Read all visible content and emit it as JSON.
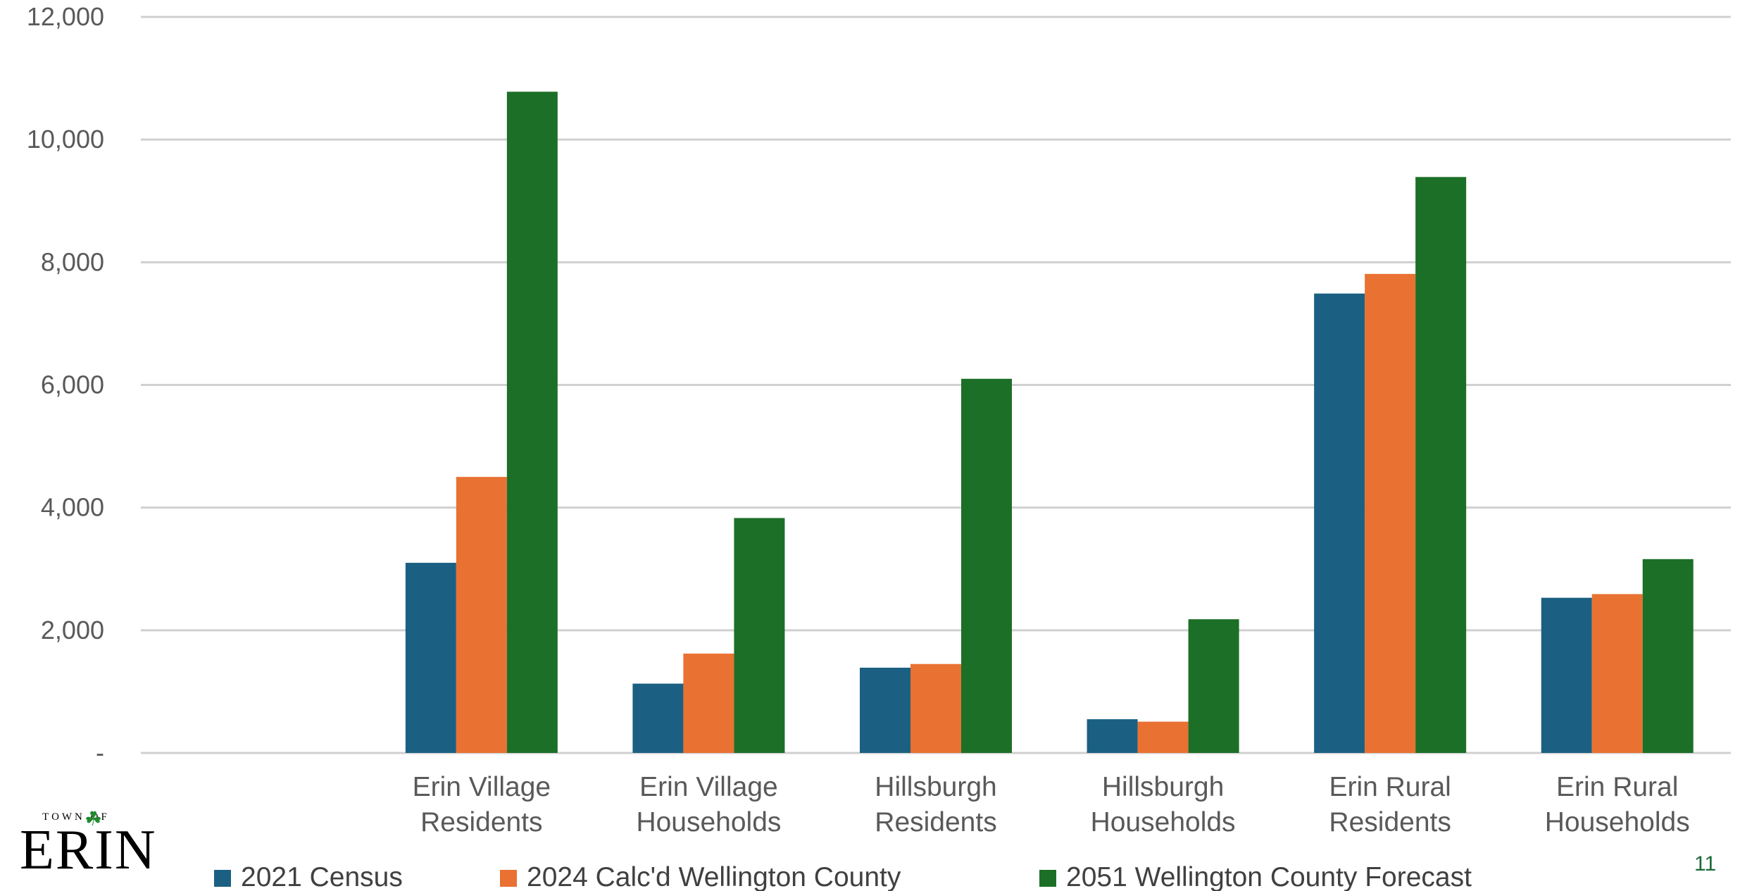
{
  "chart_data": {
    "type": "bar",
    "title": "",
    "xlabel": "",
    "ylabel": "",
    "ylim": [
      0,
      12000
    ],
    "yticks": [
      {
        "value": 0,
        "label": "-"
      },
      {
        "value": 2000,
        "label": "2,000"
      },
      {
        "value": 4000,
        "label": "4,000"
      },
      {
        "value": 6000,
        "label": "6,000"
      },
      {
        "value": 8000,
        "label": "8,000"
      },
      {
        "value": 10000,
        "label": "10,000"
      },
      {
        "value": 12000,
        "label": "12,000"
      }
    ],
    "grid": true,
    "legend_position": "bottom",
    "categories": [
      [
        "",
        ""
      ],
      [
        "Erin Village",
        "Residents"
      ],
      [
        "Erin Village",
        "Households"
      ],
      [
        "Hillsburgh",
        "Residents"
      ],
      [
        "Hillsburgh",
        "Households"
      ],
      [
        "Erin Rural",
        "Residents"
      ],
      [
        "Erin Rural",
        "Households"
      ]
    ],
    "series": [
      {
        "name": "2021 Census",
        "color": "#1b6082",
        "values": [
          null,
          3100,
          1130,
          1390,
          550,
          7490,
          2530
        ]
      },
      {
        "name": "2024 Calc'd Wellington County",
        "color": "#e97132",
        "values": [
          null,
          4500,
          1620,
          1450,
          510,
          7810,
          2590
        ]
      },
      {
        "name": "2051 Wellington County Forecast",
        "color": "#1c6f27",
        "values": [
          null,
          10780,
          3830,
          6100,
          2180,
          9390,
          3160
        ]
      }
    ]
  },
  "logo": {
    "small_text": "TOWN OF",
    "big_text": "ERIN",
    "icon": "shamrock-icon"
  },
  "page_number": "11"
}
